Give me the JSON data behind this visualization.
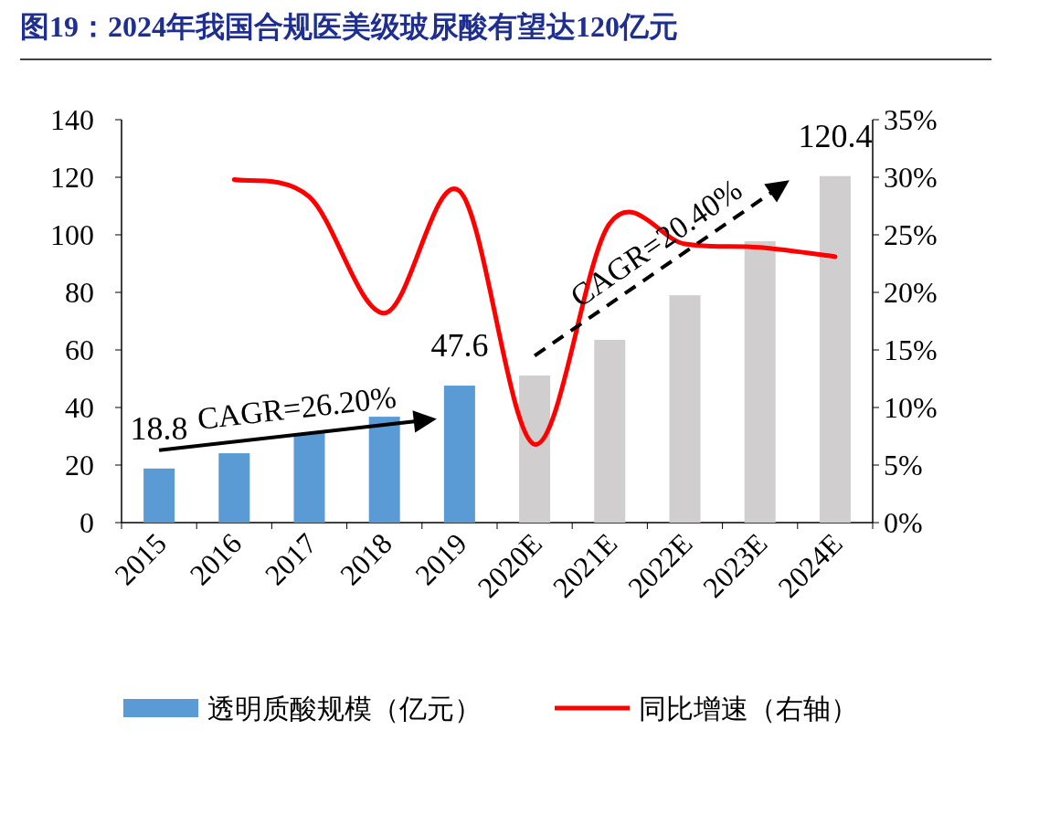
{
  "chart_data": {
    "type": "bar",
    "title": "图19：2024年我国合规医美级玻尿酸有望达120亿元",
    "categories": [
      "2015",
      "2016",
      "2017",
      "2018",
      "2019",
      "2020E",
      "2021E",
      "2022E",
      "2023E",
      "2024E"
    ],
    "series": [
      {
        "name": "透明质酸规模（亿元）",
        "color": "#5b9bd5",
        "colors": [
          "#5b9bd5",
          "#5b9bd5",
          "#5b9bd5",
          "#5b9bd5",
          "#5b9bd5",
          "#d0cece",
          "#d0cece",
          "#d0cece",
          "#d0cece",
          "#d0cece"
        ],
        "values": [
          18.8,
          24.1,
          31.1,
          36.8,
          47.6,
          51.1,
          63.5,
          79,
          97.8,
          120.4
        ],
        "value_labels": [
          "18.8",
          null,
          null,
          null,
          "47.6",
          null,
          null,
          null,
          null,
          "120.4"
        ]
      },
      {
        "name": "同比增速（右轴）",
        "type": "line",
        "axis": "y2",
        "color": "#ff0000",
        "values": [
          null,
          29.8,
          28.3,
          18.2,
          28.8,
          6.8,
          26.0,
          24.2,
          23.9,
          23.1
        ]
      }
    ],
    "ylim": [
      0,
      140
    ],
    "yticks": [
      0,
      20,
      40,
      60,
      80,
      100,
      120,
      140
    ],
    "y2lim": [
      0,
      35
    ],
    "y2ticks": [
      {
        "value": 0,
        "label": "0%"
      },
      {
        "value": 5,
        "label": "5%"
      },
      {
        "value": 10,
        "label": "10%"
      },
      {
        "value": 15,
        "label": "15%"
      },
      {
        "value": 20,
        "label": "20%"
      },
      {
        "value": 25,
        "label": "25%"
      },
      {
        "value": 30,
        "label": "30%"
      },
      {
        "value": 35,
        "label": "35%"
      }
    ],
    "annotations": [
      "CAGR=26.20%",
      "CAGR=20.40%"
    ],
    "grid": false,
    "legend": "bottom"
  }
}
